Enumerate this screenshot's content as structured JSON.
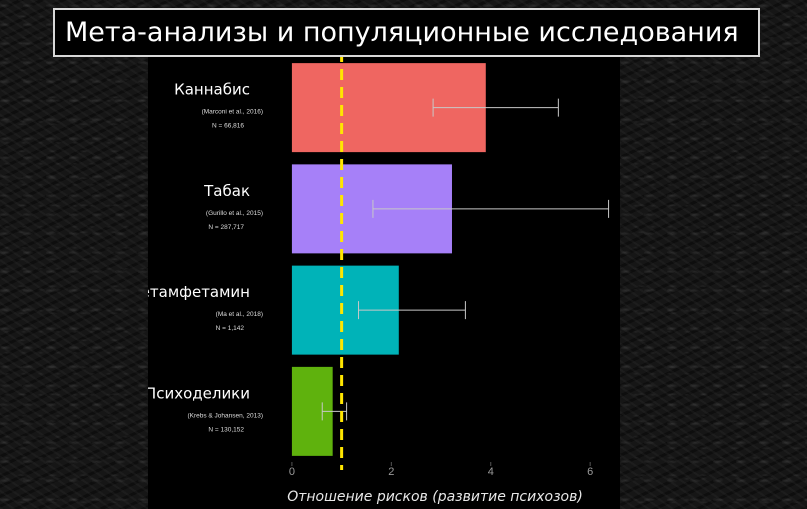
{
  "header": {
    "title": "Мета-анализы и популяционные исследования"
  },
  "chart_data": {
    "type": "bar",
    "orientation": "horizontal",
    "title": "Мета-анализы и популяционные исследования",
    "xlabel": "Отношение рисков (развитие психозов)",
    "ylabel": "",
    "xlim": [
      -0.3,
      6.6
    ],
    "xticks": [
      0,
      2,
      4,
      6
    ],
    "reference_line": 1,
    "grid": false,
    "legend": "none",
    "categories": [
      {
        "name": "Каннабис",
        "source": "(Marconi et al., 2016)",
        "n": "N = 66,816",
        "value": 3.9,
        "ci": [
          2.84,
          5.36
        ],
        "color": "#ef6661"
      },
      {
        "name": "Табак",
        "source": "(Gurillo et al., 2015)",
        "n": "N = 287,717",
        "value": 3.22,
        "ci": [
          1.63,
          6.37
        ],
        "color": "#a680f8"
      },
      {
        "name": "Метамфетамин",
        "source": "(Ma et al., 2018)",
        "n": "N = 1,142",
        "value": 2.15,
        "ci": [
          1.34,
          3.49
        ],
        "color": "#00b3b8"
      },
      {
        "name": "Психоделики",
        "source": "(Krebs & Johansen, 2013)",
        "n": "N = 130,152",
        "value": 0.82,
        "ci": [
          0.61,
          1.1
        ],
        "color": "#5fb20d"
      }
    ]
  }
}
